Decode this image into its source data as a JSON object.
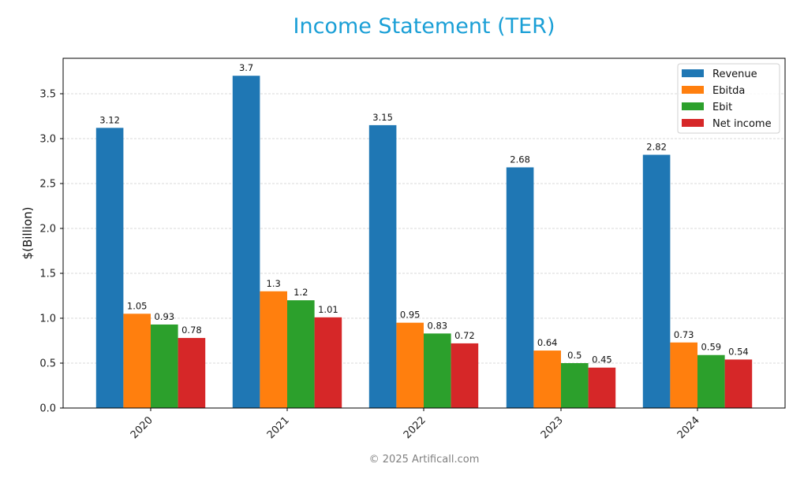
{
  "title": "Income Statement (TER)",
  "footer": "© 2025 Artificall.com",
  "colors": {
    "Revenue": "#1f77b4",
    "Ebitda": "#ff7f0e",
    "Ebit": "#2ca02c",
    "Net income": "#d62728",
    "title": "#1a9fd6"
  },
  "chart_data": {
    "type": "bar",
    "title": "Income Statement (TER)",
    "xlabel": "",
    "ylabel": "$(Billion)",
    "categories": [
      "2020",
      "2021",
      "2022",
      "2023",
      "2024"
    ],
    "series": [
      {
        "name": "Revenue",
        "values": [
          3.12,
          3.7,
          3.15,
          2.68,
          2.82
        ]
      },
      {
        "name": "Ebitda",
        "values": [
          1.05,
          1.3,
          0.95,
          0.64,
          0.73
        ]
      },
      {
        "name": "Ebit",
        "values": [
          0.93,
          1.2,
          0.83,
          0.5,
          0.59
        ]
      },
      {
        "name": "Net income",
        "values": [
          0.78,
          1.01,
          0.72,
          0.45,
          0.54
        ]
      }
    ],
    "yticks": [
      "0.0",
      "0.5",
      "1.0",
      "1.5",
      "2.0",
      "2.5",
      "3.0",
      "3.5"
    ],
    "ylim": [
      0,
      3.89
    ],
    "grid": true,
    "legend_position": "upper right"
  }
}
